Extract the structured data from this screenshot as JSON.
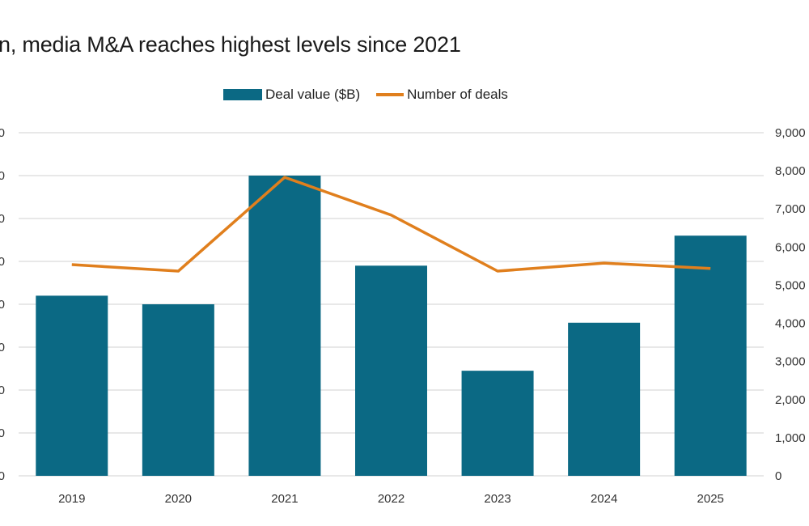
{
  "chart_data": {
    "type": "bar",
    "title": "n, media M&A reaches highest levels since 2021",
    "categories": [
      "2019",
      "2020",
      "2021",
      "2022",
      "2023",
      "2024",
      "2025"
    ],
    "series": [
      {
        "name": "Deal value ($B)",
        "type": "bar",
        "axis": "left",
        "color": "#0b6984",
        "values": [
          4.2,
          4.0,
          7.0,
          4.9,
          2.45,
          3.57,
          5.6
        ]
      },
      {
        "name": "Number of deals",
        "type": "line",
        "axis": "right",
        "color": "#e07f1d",
        "values": [
          5540,
          5370,
          7830,
          6840,
          5370,
          5580,
          5440
        ]
      }
    ],
    "left_axis": {
      "ylim": [
        0,
        8
      ],
      "tick_labels": [
        "0",
        "0",
        "0",
        "0",
        "0",
        "0",
        "0",
        "0",
        "0"
      ]
    },
    "right_axis": {
      "ylim": [
        0,
        9000
      ],
      "tick_labels": [
        "0",
        "1,000",
        "2,000",
        "3,000",
        "4,000",
        "5,000",
        "6,000",
        "7,000",
        "8,000",
        "9,000"
      ]
    },
    "grid": true,
    "legend": "top-center"
  }
}
